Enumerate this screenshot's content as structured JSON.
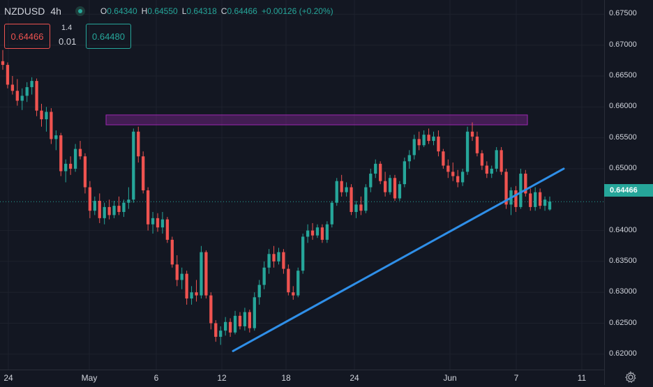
{
  "symbol": "NZDUSD",
  "interval": "4h",
  "ohlc": {
    "o_label": "O",
    "o": "0.64340",
    "h_label": "H",
    "h": "0.64550",
    "l_label": "L",
    "l": "0.64318",
    "c_label": "C",
    "c": "0.64466",
    "change": "+0.00126 (+0.20%)"
  },
  "trade": {
    "sell": "0.64466",
    "spread_top": "1.4",
    "spread_bottom": "0.01",
    "buy": "0.64480"
  },
  "last_price": "0.64466",
  "price_axis": [
    "0.67500",
    "0.67000",
    "0.66500",
    "0.66000",
    "0.65500",
    "0.65000",
    "0.64000",
    "0.63500",
    "0.63000",
    "0.62500",
    "0.62000"
  ],
  "time_axis": [
    "24",
    "May",
    "6",
    "12",
    "18",
    "24",
    "Jun",
    "7",
    "11"
  ],
  "colors": {
    "up": "#26a69a",
    "down": "#ef5350",
    "background": "#131722",
    "trendline": "#2f8fe8",
    "zone": "#9c27b0"
  },
  "icons": {
    "settings": "gear-icon"
  },
  "chart_data": {
    "type": "candlestick",
    "ylim": [
      0.6175,
      0.6773
    ],
    "resistance_zone": [
      0.6571,
      0.6587
    ],
    "trendline": {
      "from": 0.6205,
      "to": 0.65
    },
    "candles": [
      {
        "o": 0.6674,
        "h": 0.6692,
        "l": 0.666,
        "c": 0.6668
      },
      {
        "o": 0.6668,
        "h": 0.6672,
        "l": 0.663,
        "c": 0.6636
      },
      {
        "o": 0.6636,
        "h": 0.665,
        "l": 0.662,
        "c": 0.6626
      },
      {
        "o": 0.6626,
        "h": 0.6645,
        "l": 0.6602,
        "c": 0.661
      },
      {
        "o": 0.661,
        "h": 0.663,
        "l": 0.6595,
        "c": 0.6618
      },
      {
        "o": 0.6618,
        "h": 0.664,
        "l": 0.6608,
        "c": 0.6632
      },
      {
        "o": 0.6632,
        "h": 0.6648,
        "l": 0.662,
        "c": 0.6642
      },
      {
        "o": 0.6642,
        "h": 0.6646,
        "l": 0.6585,
        "c": 0.6594
      },
      {
        "o": 0.6594,
        "h": 0.6605,
        "l": 0.6568,
        "c": 0.658
      },
      {
        "o": 0.658,
        "h": 0.66,
        "l": 0.656,
        "c": 0.6592
      },
      {
        "o": 0.6592,
        "h": 0.6598,
        "l": 0.654,
        "c": 0.6548
      },
      {
        "o": 0.6548,
        "h": 0.6562,
        "l": 0.653,
        "c": 0.6554
      },
      {
        "o": 0.6554,
        "h": 0.6558,
        "l": 0.6488,
        "c": 0.6496
      },
      {
        "o": 0.6496,
        "h": 0.6515,
        "l": 0.6478,
        "c": 0.6508
      },
      {
        "o": 0.6508,
        "h": 0.652,
        "l": 0.649,
        "c": 0.65
      },
      {
        "o": 0.65,
        "h": 0.654,
        "l": 0.6495,
        "c": 0.6532
      },
      {
        "o": 0.6532,
        "h": 0.6545,
        "l": 0.6515,
        "c": 0.652
      },
      {
        "o": 0.652,
        "h": 0.6525,
        "l": 0.646,
        "c": 0.647
      },
      {
        "o": 0.647,
        "h": 0.648,
        "l": 0.642,
        "c": 0.6432
      },
      {
        "o": 0.6432,
        "h": 0.6455,
        "l": 0.6425,
        "c": 0.6448
      },
      {
        "o": 0.6448,
        "h": 0.646,
        "l": 0.6412,
        "c": 0.642
      },
      {
        "o": 0.642,
        "h": 0.6445,
        "l": 0.641,
        "c": 0.6438
      },
      {
        "o": 0.6438,
        "h": 0.645,
        "l": 0.6418,
        "c": 0.6425
      },
      {
        "o": 0.6425,
        "h": 0.6448,
        "l": 0.642,
        "c": 0.644
      },
      {
        "o": 0.644,
        "h": 0.6455,
        "l": 0.6425,
        "c": 0.643
      },
      {
        "o": 0.643,
        "h": 0.645,
        "l": 0.6422,
        "c": 0.6445
      },
      {
        "o": 0.6445,
        "h": 0.647,
        "l": 0.6435,
        "c": 0.645
      },
      {
        "o": 0.645,
        "h": 0.6565,
        "l": 0.6445,
        "c": 0.656
      },
      {
        "o": 0.656,
        "h": 0.6568,
        "l": 0.651,
        "c": 0.652
      },
      {
        "o": 0.652,
        "h": 0.6528,
        "l": 0.646,
        "c": 0.6465
      },
      {
        "o": 0.6465,
        "h": 0.647,
        "l": 0.64,
        "c": 0.641
      },
      {
        "o": 0.641,
        "h": 0.643,
        "l": 0.6395,
        "c": 0.642
      },
      {
        "o": 0.642,
        "h": 0.6428,
        "l": 0.6398,
        "c": 0.6405
      },
      {
        "o": 0.6405,
        "h": 0.643,
        "l": 0.6395,
        "c": 0.6418
      },
      {
        "o": 0.6418,
        "h": 0.6422,
        "l": 0.638,
        "c": 0.6385
      },
      {
        "o": 0.6385,
        "h": 0.639,
        "l": 0.634,
        "c": 0.6345
      },
      {
        "o": 0.6345,
        "h": 0.636,
        "l": 0.631,
        "c": 0.632
      },
      {
        "o": 0.632,
        "h": 0.634,
        "l": 0.6305,
        "c": 0.633
      },
      {
        "o": 0.633,
        "h": 0.6335,
        "l": 0.628,
        "c": 0.629
      },
      {
        "o": 0.629,
        "h": 0.631,
        "l": 0.628,
        "c": 0.63
      },
      {
        "o": 0.63,
        "h": 0.632,
        "l": 0.6285,
        "c": 0.6295
      },
      {
        "o": 0.6295,
        "h": 0.6375,
        "l": 0.629,
        "c": 0.6365
      },
      {
        "o": 0.6365,
        "h": 0.6368,
        "l": 0.629,
        "c": 0.6295
      },
      {
        "o": 0.6295,
        "h": 0.63,
        "l": 0.624,
        "c": 0.625
      },
      {
        "o": 0.625,
        "h": 0.6255,
        "l": 0.622,
        "c": 0.6228
      },
      {
        "o": 0.6228,
        "h": 0.6245,
        "l": 0.6215,
        "c": 0.6238
      },
      {
        "o": 0.6238,
        "h": 0.626,
        "l": 0.623,
        "c": 0.6252
      },
      {
        "o": 0.6252,
        "h": 0.6258,
        "l": 0.6228,
        "c": 0.6235
      },
      {
        "o": 0.6235,
        "h": 0.627,
        "l": 0.6232,
        "c": 0.6262
      },
      {
        "o": 0.6262,
        "h": 0.6268,
        "l": 0.624,
        "c": 0.6245
      },
      {
        "o": 0.6245,
        "h": 0.6275,
        "l": 0.6238,
        "c": 0.6268
      },
      {
        "o": 0.6268,
        "h": 0.6272,
        "l": 0.6235,
        "c": 0.6242
      },
      {
        "o": 0.6242,
        "h": 0.63,
        "l": 0.6238,
        "c": 0.6292
      },
      {
        "o": 0.6292,
        "h": 0.632,
        "l": 0.628,
        "c": 0.6312
      },
      {
        "o": 0.6312,
        "h": 0.635,
        "l": 0.6305,
        "c": 0.634
      },
      {
        "o": 0.634,
        "h": 0.637,
        "l": 0.633,
        "c": 0.6362
      },
      {
        "o": 0.6362,
        "h": 0.6375,
        "l": 0.634,
        "c": 0.635
      },
      {
        "o": 0.635,
        "h": 0.6372,
        "l": 0.6345,
        "c": 0.6365
      },
      {
        "o": 0.6365,
        "h": 0.637,
        "l": 0.633,
        "c": 0.6338
      },
      {
        "o": 0.6338,
        "h": 0.6345,
        "l": 0.6295,
        "c": 0.63
      },
      {
        "o": 0.63,
        "h": 0.631,
        "l": 0.6288,
        "c": 0.6295
      },
      {
        "o": 0.6295,
        "h": 0.634,
        "l": 0.6292,
        "c": 0.6335
      },
      {
        "o": 0.6335,
        "h": 0.6395,
        "l": 0.633,
        "c": 0.639
      },
      {
        "o": 0.639,
        "h": 0.641,
        "l": 0.638,
        "c": 0.64
      },
      {
        "o": 0.64,
        "h": 0.6412,
        "l": 0.6385,
        "c": 0.6392
      },
      {
        "o": 0.6392,
        "h": 0.641,
        "l": 0.6388,
        "c": 0.6405
      },
      {
        "o": 0.6405,
        "h": 0.641,
        "l": 0.638,
        "c": 0.6385
      },
      {
        "o": 0.6385,
        "h": 0.6415,
        "l": 0.638,
        "c": 0.641
      },
      {
        "o": 0.641,
        "h": 0.6448,
        "l": 0.6405,
        "c": 0.6445
      },
      {
        "o": 0.6445,
        "h": 0.6485,
        "l": 0.644,
        "c": 0.648
      },
      {
        "o": 0.648,
        "h": 0.649,
        "l": 0.6455,
        "c": 0.6462
      },
      {
        "o": 0.6462,
        "h": 0.6478,
        "l": 0.6455,
        "c": 0.647
      },
      {
        "o": 0.647,
        "h": 0.6475,
        "l": 0.6425,
        "c": 0.643
      },
      {
        "o": 0.643,
        "h": 0.6448,
        "l": 0.642,
        "c": 0.6442
      },
      {
        "o": 0.6442,
        "h": 0.6455,
        "l": 0.6425,
        "c": 0.6432
      },
      {
        "o": 0.6432,
        "h": 0.6475,
        "l": 0.6428,
        "c": 0.647
      },
      {
        "o": 0.647,
        "h": 0.65,
        "l": 0.6462,
        "c": 0.6492
      },
      {
        "o": 0.6492,
        "h": 0.6515,
        "l": 0.6485,
        "c": 0.6508
      },
      {
        "o": 0.6508,
        "h": 0.6512,
        "l": 0.6475,
        "c": 0.648
      },
      {
        "o": 0.648,
        "h": 0.6495,
        "l": 0.6455,
        "c": 0.6462
      },
      {
        "o": 0.6462,
        "h": 0.649,
        "l": 0.6458,
        "c": 0.6485
      },
      {
        "o": 0.6485,
        "h": 0.649,
        "l": 0.6448,
        "c": 0.6452
      },
      {
        "o": 0.6452,
        "h": 0.648,
        "l": 0.6448,
        "c": 0.6475
      },
      {
        "o": 0.6475,
        "h": 0.6518,
        "l": 0.647,
        "c": 0.6512
      },
      {
        "o": 0.6512,
        "h": 0.653,
        "l": 0.65,
        "c": 0.6522
      },
      {
        "o": 0.6522,
        "h": 0.6555,
        "l": 0.6515,
        "c": 0.6548
      },
      {
        "o": 0.6548,
        "h": 0.656,
        "l": 0.653,
        "c": 0.6538
      },
      {
        "o": 0.6538,
        "h": 0.6562,
        "l": 0.6535,
        "c": 0.6555
      },
      {
        "o": 0.6555,
        "h": 0.6565,
        "l": 0.654,
        "c": 0.6545
      },
      {
        "o": 0.6545,
        "h": 0.656,
        "l": 0.6538,
        "c": 0.6552
      },
      {
        "o": 0.6552,
        "h": 0.6562,
        "l": 0.652,
        "c": 0.6528
      },
      {
        "o": 0.6528,
        "h": 0.6532,
        "l": 0.65,
        "c": 0.6505
      },
      {
        "o": 0.6505,
        "h": 0.6515,
        "l": 0.6485,
        "c": 0.6495
      },
      {
        "o": 0.6495,
        "h": 0.651,
        "l": 0.648,
        "c": 0.6488
      },
      {
        "o": 0.6488,
        "h": 0.6498,
        "l": 0.647,
        "c": 0.6478
      },
      {
        "o": 0.6478,
        "h": 0.65,
        "l": 0.6472,
        "c": 0.6495
      },
      {
        "o": 0.6495,
        "h": 0.6568,
        "l": 0.649,
        "c": 0.656
      },
      {
        "o": 0.656,
        "h": 0.6575,
        "l": 0.6545,
        "c": 0.6552
      },
      {
        "o": 0.6552,
        "h": 0.656,
        "l": 0.652,
        "c": 0.6525
      },
      {
        "o": 0.6525,
        "h": 0.653,
        "l": 0.6498,
        "c": 0.6505
      },
      {
        "o": 0.6505,
        "h": 0.6512,
        "l": 0.6485,
        "c": 0.6492
      },
      {
        "o": 0.6492,
        "h": 0.6505,
        "l": 0.6485,
        "c": 0.65
      },
      {
        "o": 0.65,
        "h": 0.6535,
        "l": 0.6495,
        "c": 0.653
      },
      {
        "o": 0.653,
        "h": 0.6535,
        "l": 0.649,
        "c": 0.6495
      },
      {
        "o": 0.6495,
        "h": 0.65,
        "l": 0.6435,
        "c": 0.6442
      },
      {
        "o": 0.6442,
        "h": 0.647,
        "l": 0.6425,
        "c": 0.6465
      },
      {
        "o": 0.6465,
        "h": 0.6472,
        "l": 0.643,
        "c": 0.6438
      },
      {
        "o": 0.6438,
        "h": 0.65,
        "l": 0.6435,
        "c": 0.6492
      },
      {
        "o": 0.6492,
        "h": 0.6498,
        "l": 0.6455,
        "c": 0.646
      },
      {
        "o": 0.646,
        "h": 0.6468,
        "l": 0.6432,
        "c": 0.6438
      },
      {
        "o": 0.6438,
        "h": 0.647,
        "l": 0.6432,
        "c": 0.6462
      },
      {
        "o": 0.6462,
        "h": 0.6468,
        "l": 0.6435,
        "c": 0.644
      },
      {
        "o": 0.644,
        "h": 0.6455,
        "l": 0.6432,
        "c": 0.645
      },
      {
        "o": 0.6434,
        "h": 0.6455,
        "l": 0.6432,
        "c": 0.6447
      }
    ]
  }
}
